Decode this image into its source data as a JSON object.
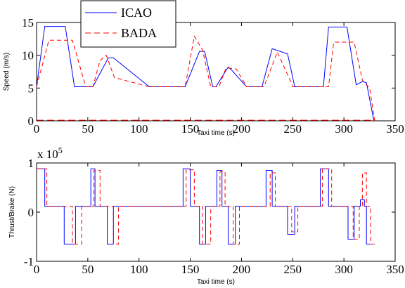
{
  "chart_data": [
    {
      "type": "line",
      "xlabel": "Taxi time (s)",
      "ylabel": "Speed (m/s)",
      "xlim": [
        0,
        350
      ],
      "ylim": [
        0,
        15
      ],
      "xticks": [
        "0",
        "50",
        "100",
        "150",
        "200",
        "250",
        "300",
        "350"
      ],
      "yticks": [
        "0",
        "5",
        "10",
        "15"
      ],
      "legend_position": "top-center",
      "series": [
        {
          "name": "ICAO",
          "color": "#0000ff",
          "dash": "solid",
          "x": [
            0,
            8,
            28,
            37,
            55,
            70,
            75,
            110,
            145,
            159,
            164,
            172,
            175,
            187,
            190,
            205,
            220,
            230,
            245,
            252,
            280,
            285,
            303,
            312,
            318,
            322,
            329,
            330
          ],
          "y": [
            5.2,
            14.4,
            14.4,
            5.2,
            5.2,
            9.6,
            9.6,
            5.2,
            5.2,
            10.6,
            10.6,
            5.2,
            5.2,
            8.2,
            7.8,
            5.2,
            5.2,
            11.0,
            10.2,
            5.2,
            5.2,
            14.3,
            14.3,
            5.5,
            6.0,
            5.8,
            0.2,
            0.0
          ]
        },
        {
          "name": "BADA",
          "color": "#ff0000",
          "dash": "6,4",
          "x": [
            0,
            12,
            35,
            48,
            55,
            62,
            68,
            76,
            110,
            130,
            145,
            154,
            162,
            170,
            178,
            185,
            195,
            205,
            215,
            222,
            235,
            248,
            250,
            260,
            285,
            290,
            310,
            318,
            325,
            330
          ],
          "y": [
            5.2,
            12.3,
            12.3,
            5.2,
            5.2,
            9.2,
            10.0,
            6.6,
            5.2,
            5.2,
            5.2,
            12.9,
            10.8,
            5.2,
            5.2,
            8.1,
            7.9,
            5.2,
            5.2,
            5.2,
            10.5,
            6.0,
            5.2,
            5.2,
            5.2,
            12.0,
            12.0,
            6.2,
            5.0,
            0.0
          ]
        }
      ]
    },
    {
      "type": "line",
      "xlabel": "Taxi time (s)",
      "ylabel": "Thrust/Brake (N)",
      "xlim": [
        0,
        350
      ],
      "ylim": [
        -1,
        1
      ],
      "scale_note": "x 10",
      "scale_exponent": "5",
      "xticks": [
        "0",
        "50",
        "100",
        "150",
        "200",
        "250",
        "300",
        "350"
      ],
      "yticks": [
        "-1",
        "0",
        "1"
      ],
      "series": [
        {
          "name": "ICAO",
          "color": "#0000ff",
          "dash": "solid",
          "steps": [
            [
              0,
              0.88
            ],
            [
              8,
              0.12
            ],
            [
              27,
              -0.65
            ],
            [
              38,
              0.12
            ],
            [
              53,
              0.88
            ],
            [
              57,
              0.12
            ],
            [
              69,
              -0.65
            ],
            [
              75,
              0.12
            ],
            [
              143,
              0.88
            ],
            [
              150,
              0.12
            ],
            [
              159,
              -0.65
            ],
            [
              165,
              0.12
            ],
            [
              176,
              0.85
            ],
            [
              181,
              0.12
            ],
            [
              187,
              -0.65
            ],
            [
              194,
              0.12
            ],
            [
              224,
              0.85
            ],
            [
              230,
              0.12
            ],
            [
              245,
              -0.45
            ],
            [
              252,
              0.12
            ],
            [
              277,
              0.88
            ],
            [
              285,
              0.12
            ],
            [
              304,
              -0.55
            ],
            [
              310,
              0.12
            ],
            [
              316,
              0.25
            ],
            [
              320,
              0.12
            ],
            [
              322,
              -0.65
            ],
            [
              330,
              -0.65
            ]
          ]
        },
        {
          "name": "BADA",
          "color": "#ff0000",
          "dash": "6,4",
          "steps": [
            [
              0,
              0.88
            ],
            [
              10,
              0.12
            ],
            [
              35,
              -0.65
            ],
            [
              44,
              0.12
            ],
            [
              56,
              0.85
            ],
            [
              62,
              0.12
            ],
            [
              75,
              -0.65
            ],
            [
              80,
              0.12
            ],
            [
              146,
              0.86
            ],
            [
              154,
              0.12
            ],
            [
              162,
              -0.65
            ],
            [
              170,
              0.12
            ],
            [
              179,
              0.82
            ],
            [
              184,
              0.12
            ],
            [
              192,
              -0.65
            ],
            [
              198,
              0.12
            ],
            [
              228,
              0.8
            ],
            [
              233,
              0.12
            ],
            [
              249,
              -0.4
            ],
            [
              255,
              0.12
            ],
            [
              279,
              0.88
            ],
            [
              288,
              0.12
            ],
            [
              309,
              -0.55
            ],
            [
              315,
              0.12
            ],
            [
              318,
              0.8
            ],
            [
              322,
              0.12
            ],
            [
              326,
              -0.65
            ],
            [
              330,
              -0.65
            ]
          ]
        }
      ]
    }
  ]
}
